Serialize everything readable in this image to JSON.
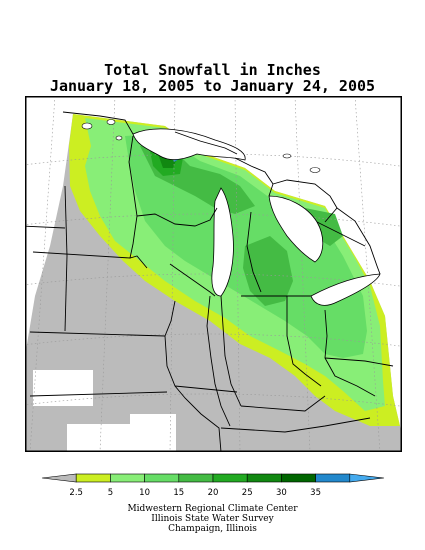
{
  "title": {
    "line1": "Total Snowfall in Inches",
    "line2": "January 18, 2005 to January 24, 2005"
  },
  "legend": {
    "unit": "inches",
    "levels": [
      {
        "label": "",
        "color": "#bbbbbb"
      },
      {
        "label": "2.5",
        "color": "#ccee22"
      },
      {
        "label": "5",
        "color": "#88ee77"
      },
      {
        "label": "10",
        "color": "#66dd66"
      },
      {
        "label": "15",
        "color": "#44bb44"
      },
      {
        "label": "20",
        "color": "#22aa22"
      },
      {
        "label": "25",
        "color": "#118811"
      },
      {
        "label": "30",
        "color": "#006600"
      },
      {
        "label": "35",
        "color": "#2288cc"
      },
      {
        "label": "",
        "color": "#44aaee"
      }
    ]
  },
  "map": {
    "region": "Midwest",
    "background_color": "#bbbbbb",
    "no_data_color": "#ffffff",
    "state_lines": true,
    "lat_lon_grid": true
  },
  "credits": {
    "line1": "Midwestern Regional Climate Center",
    "line2": "Illinois State Water Survey",
    "line3": "Champaign, Illinois"
  }
}
